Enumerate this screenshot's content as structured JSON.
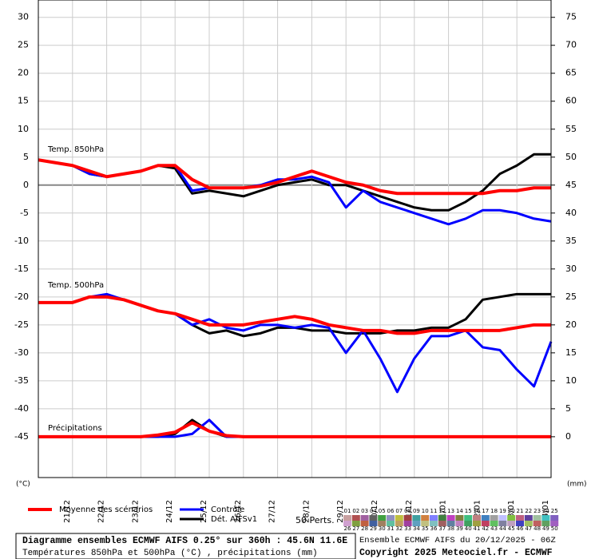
{
  "chart_data": {
    "type": "line",
    "xlim": [
      0,
      360
    ],
    "xticks": [
      {
        "value": 24,
        "label": "21/12"
      },
      {
        "value": 48,
        "label": "22/12"
      },
      {
        "value": 72,
        "label": "23/12"
      },
      {
        "value": 96,
        "label": "24/12"
      },
      {
        "value": 120,
        "label": "25/12"
      },
      {
        "value": 144,
        "label": "26/12"
      },
      {
        "value": 168,
        "label": "27/12"
      },
      {
        "value": 192,
        "label": "28/12"
      },
      {
        "value": 216,
        "label": "29/12"
      },
      {
        "value": 240,
        "label": "30/12"
      },
      {
        "value": 264,
        "label": "31/12"
      },
      {
        "value": 288,
        "label": "01/01"
      },
      {
        "value": 312,
        "label": "02/01"
      },
      {
        "value": 336,
        "label": "03/01"
      },
      {
        "value": 360,
        "label": "04/01"
      }
    ],
    "ylim": [
      -52.3,
      33.1
    ],
    "yticks": [
      30,
      25,
      20,
      15,
      10,
      5,
      0,
      -5,
      -10,
      -15,
      -20,
      -25,
      -30,
      -35,
      -40,
      -45
    ],
    "y2lim": [
      -7.3,
      78.1
    ],
    "y2ticks": [
      75,
      70,
      65,
      60,
      55,
      50,
      45,
      40,
      35,
      30,
      25,
      20,
      15,
      10,
      5,
      0
    ],
    "ylabel": "(°C)",
    "y2label": "(mm)",
    "grid": true,
    "x": [
      0,
      12,
      24,
      36,
      48,
      60,
      72,
      84,
      96,
      108,
      120,
      132,
      144,
      156,
      168,
      180,
      192,
      204,
      216,
      228,
      240,
      252,
      264,
      276,
      288,
      300,
      312,
      324,
      336,
      348,
      360
    ],
    "legend": [
      {
        "name": "Moyenne des scénarios",
        "color": "#ff0000"
      },
      {
        "name": "Contrôle",
        "color": "#0000ff"
      },
      {
        "name": "Dét. AIFSv1",
        "color": "#000000"
      }
    ],
    "perturbations": {
      "label": "50 Perts.",
      "names": [
        "01",
        "02",
        "03",
        "04",
        "05",
        "06",
        "07",
        "08",
        "09",
        "10",
        "11",
        "12",
        "13",
        "14",
        "15",
        "16",
        "17",
        "18",
        "19",
        "20",
        "21",
        "22",
        "23",
        "24",
        "25",
        "26",
        "27",
        "28",
        "29",
        "30",
        "31",
        "32",
        "33",
        "34",
        "35",
        "36",
        "37",
        "38",
        "39",
        "40",
        "41",
        "42",
        "43",
        "44",
        "45",
        "46",
        "47",
        "48",
        "49",
        "50"
      ],
      "colors": [
        "#c8a0a0",
        "#b05050",
        "#a060a0",
        "#606060",
        "#40a040",
        "#9090c0",
        "#c0c040",
        "#a04040",
        "#40a0a0",
        "#d08040",
        "#8080ff",
        "#408040",
        "#c040c0",
        "#808040",
        "#40c080",
        "#c08080",
        "#4080c0",
        "#a0a0a0",
        "#c0c0ff",
        "#80c040",
        "#c06080",
        "#6040a0",
        "#a0c0a0",
        "#40c0c0",
        "#8060c0",
        "#d0a0d0",
        "#80a040",
        "#c06040",
        "#4060a0",
        "#a08060",
        "#60c0a0",
        "#c0a060",
        "#a040a0",
        "#60a0c0",
        "#c0c080",
        "#80c0c0",
        "#a06060",
        "#6080a0",
        "#c080c0",
        "#40a060",
        "#a0a040",
        "#c04060",
        "#60c060",
        "#8080a0",
        "#c0a0c0",
        "#4040c0",
        "#a0c060",
        "#c06060",
        "#60a060",
        "#a060c0"
      ]
    },
    "groups": [
      {
        "label": "Temp. 850hPa",
        "series": [
          {
            "axis": "y",
            "values": [
              4.5,
              4,
              3.5,
              2.5,
              1.5,
              2,
              2.5,
              3.5,
              3.5,
              1,
              -0.5,
              -0.5,
              -0.5,
              -0.2,
              0.5,
              1.5,
              2.5,
              1.5,
              0.5,
              0,
              -1,
              -1.5,
              -1.5,
              -1.5,
              -1.5,
              -1.5,
              -1.5,
              -1,
              -1,
              -0.5,
              -0.5
            ]
          },
          {
            "axis": "y",
            "values": [
              4.5,
              4,
              3.5,
              2,
              1.5,
              2,
              2.5,
              3.5,
              3.5,
              -1,
              -0.5,
              -0.5,
              -0.5,
              0,
              1,
              1,
              1.5,
              0.5,
              -4,
              -1,
              -3,
              -4,
              -5,
              -6,
              -7,
              -6,
              -4.5,
              -4.5,
              -5,
              -6,
              -6.5
            ]
          },
          {
            "axis": "y",
            "values": [
              4.5,
              4,
              3.5,
              2,
              1.5,
              2,
              2.5,
              3.5,
              3,
              -1.5,
              -1,
              -1.5,
              -2,
              -1,
              0,
              0.5,
              1,
              0,
              0,
              -1,
              -2,
              -3,
              -4,
              -4.5,
              -4.5,
              -3,
              -1,
              2,
              3.5,
              5.5,
              5.5
            ]
          }
        ]
      },
      {
        "label": "Temp. 500hPa",
        "series": [
          {
            "axis": "y",
            "values": [
              -21,
              -21,
              -21,
              -20,
              -20,
              -20.5,
              -21.5,
              -22.5,
              -23,
              -24,
              -25,
              -25,
              -25,
              -24.5,
              -24,
              -23.5,
              -24,
              -25,
              -25.5,
              -26,
              -26,
              -26.5,
              -26.5,
              -26,
              -26,
              -26,
              -26,
              -26,
              -25.5,
              -25,
              -25
            ]
          },
          {
            "axis": "y",
            "values": [
              -21,
              -21,
              -21,
              -20,
              -19.5,
              -20.5,
              -21.5,
              -22.5,
              -23,
              -25,
              -24,
              -25.5,
              -26,
              -25,
              -25,
              -25.5,
              -25,
              -25.5,
              -30,
              -26,
              -31,
              -37,
              -31,
              -27,
              -27,
              -26,
              -29,
              -29.5,
              -33,
              -36,
              -28
            ]
          },
          {
            "axis": "y",
            "values": [
              -21,
              -21,
              -21,
              -20,
              -20,
              -20.5,
              -21.5,
              -22.5,
              -23,
              -25,
              -26.5,
              -26,
              -27,
              -26.5,
              -25.5,
              -25.5,
              -26,
              -26,
              -26.5,
              -26.5,
              -26.5,
              -26,
              -26,
              -25.5,
              -25.5,
              -24,
              -20.5,
              -20,
              -19.5,
              -19.5,
              -19.5
            ]
          }
        ]
      },
      {
        "label": "Précipitations",
        "series": [
          {
            "axis": "y2",
            "values": [
              0,
              0,
              0,
              0,
              0,
              0,
              0,
              0.3,
              0.8,
              2.5,
              1,
              0.2,
              0,
              0,
              0,
              0,
              0,
              0,
              0,
              0,
              0,
              0,
              0,
              0,
              0,
              0,
              0,
              0,
              0,
              0,
              0
            ]
          },
          {
            "axis": "y2",
            "values": [
              0,
              0,
              0,
              0,
              0,
              0,
              0,
              0,
              0,
              0.5,
              3,
              0,
              0,
              0,
              0,
              0,
              0,
              0,
              0,
              0,
              0,
              0,
              0,
              0,
              0,
              0,
              0,
              0,
              0,
              0,
              0
            ]
          },
          {
            "axis": "y2",
            "values": [
              0,
              0,
              0,
              0,
              0,
              0,
              0,
              0,
              0.5,
              3,
              1,
              0,
              0,
              0,
              0,
              0,
              0,
              0,
              0,
              0,
              0,
              0,
              0,
              0,
              0,
              0,
              0,
              0,
              0,
              0,
              0
            ]
          }
        ]
      }
    ],
    "footer": {
      "title": "Diagramme ensembles ECMWF AIFS 0.25° sur 360h : 45.6N 11.6E",
      "subtitle": "Températures 850hPa et 500hPa (°C) , précipitations (mm)",
      "run": "Ensemble ECMWF AIFS du 20/12/2025 - 06Z",
      "copyright": "Copyright 2025 Meteociel.fr - ECMWF"
    }
  }
}
